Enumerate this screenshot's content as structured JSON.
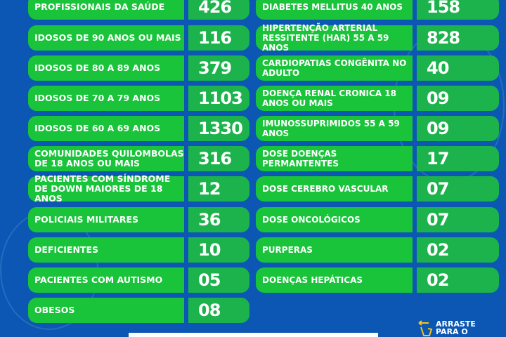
{
  "left": [
    {
      "label": "PROFISSIONAIS DA SAÚDE",
      "value": "426"
    },
    {
      "label": "IDOSOS DE 90 ANOS OU MAIS",
      "value": "116"
    },
    {
      "label": "IDOSOS DE 80 A 89 ANOS",
      "value": "379"
    },
    {
      "label": "IDOSOS DE 70 A 79 ANOS",
      "value": "1103"
    },
    {
      "label": "IDOSOS DE 60 A 69 ANOS",
      "value": "1330"
    },
    {
      "label": "COMUNIDADES QUILOMBOLAS DE 18 ANOS OU MAIS",
      "value": "316"
    },
    {
      "label": "PACIENTES COM SÍNDROME DE DOWN MAIORES DE 18 ANOS",
      "value": "12"
    },
    {
      "label": "POLICIAIS MILITARES",
      "value": "36"
    },
    {
      "label": "DEFICIENTES",
      "value": "10"
    },
    {
      "label": "PACIENTES COM AUTISMO",
      "value": "05"
    },
    {
      "label": "OBESOS",
      "value": "08"
    }
  ],
  "right": [
    {
      "label": "DIABETES MELLITUS 40 ANOS",
      "value": "158"
    },
    {
      "label": "HIPERTENÇÃO ARTERIAL RESSITENTE (HAR) 55 A 59 ANOS",
      "value": "828"
    },
    {
      "label": "CARDIOPATIAS CONGÊNITA NO ADULTO",
      "value": "40"
    },
    {
      "label": "DOENÇA RENAL CRONICA 18 ANOS OU MAIS",
      "value": "09"
    },
    {
      "label": "IMUNOSSUPRIMIDOS 55 A 59 ANOS",
      "value": "09"
    },
    {
      "label": "DOSE DOENÇAS PERMANTENTES",
      "value": "17"
    },
    {
      "label": "DOSE CEREBRO VASCULAR",
      "value": "07"
    },
    {
      "label": "DOSE ONCOLÓGICOS",
      "value": "07"
    },
    {
      "label": "PURPERAS",
      "value": "02"
    },
    {
      "label": "DOENÇAS HEPÁTICAS",
      "value": "02"
    }
  ],
  "swipe": {
    "text": "ARRASTE PARA O",
    "icon": "swipe-hand-icon",
    "color": "#f5c518"
  },
  "colors": {
    "background": "#0b57b3",
    "label_box": "#19c33a",
    "value_box": "#1cb34c"
  }
}
